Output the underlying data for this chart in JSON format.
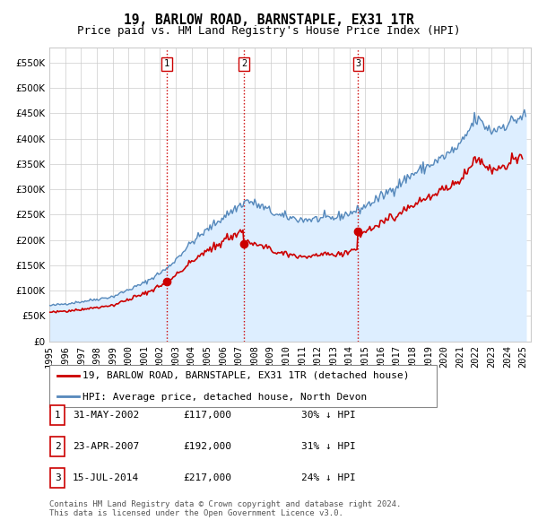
{
  "title": "19, BARLOW ROAD, BARNSTAPLE, EX31 1TR",
  "subtitle": "Price paid vs. HM Land Registry's House Price Index (HPI)",
  "ytick_values": [
    0,
    50000,
    100000,
    150000,
    200000,
    250000,
    300000,
    350000,
    400000,
    450000,
    500000,
    550000
  ],
  "ylim": [
    0,
    580000
  ],
  "xlim_start": 1995.0,
  "xlim_end": 2025.5,
  "hpi_color": "#5588bb",
  "hpi_fill_color": "#ddeeff",
  "price_color": "#cc0000",
  "vline_color": "#cc0000",
  "grid_color": "#cccccc",
  "background_color": "#ffffff",
  "sale_dates": [
    2002.42,
    2007.31,
    2014.54
  ],
  "sale_prices": [
    117000,
    192000,
    217000
  ],
  "sale_labels": [
    "1",
    "2",
    "3"
  ],
  "legend_price_label": "19, BARLOW ROAD, BARNSTAPLE, EX31 1TR (detached house)",
  "legend_hpi_label": "HPI: Average price, detached house, North Devon",
  "table_rows": [
    [
      "1",
      "31-MAY-2002",
      "£117,000",
      "30% ↓ HPI"
    ],
    [
      "2",
      "23-APR-2007",
      "£192,000",
      "31% ↓ HPI"
    ],
    [
      "3",
      "15-JUL-2014",
      "£217,000",
      "24% ↓ HPI"
    ]
  ],
  "footer": "Contains HM Land Registry data © Crown copyright and database right 2024.\nThis data is licensed under the Open Government Licence v3.0.",
  "title_fontsize": 10.5,
  "subtitle_fontsize": 9,
  "tick_fontsize": 7.5,
  "legend_fontsize": 8,
  "table_fontsize": 8,
  "footer_fontsize": 6.5
}
